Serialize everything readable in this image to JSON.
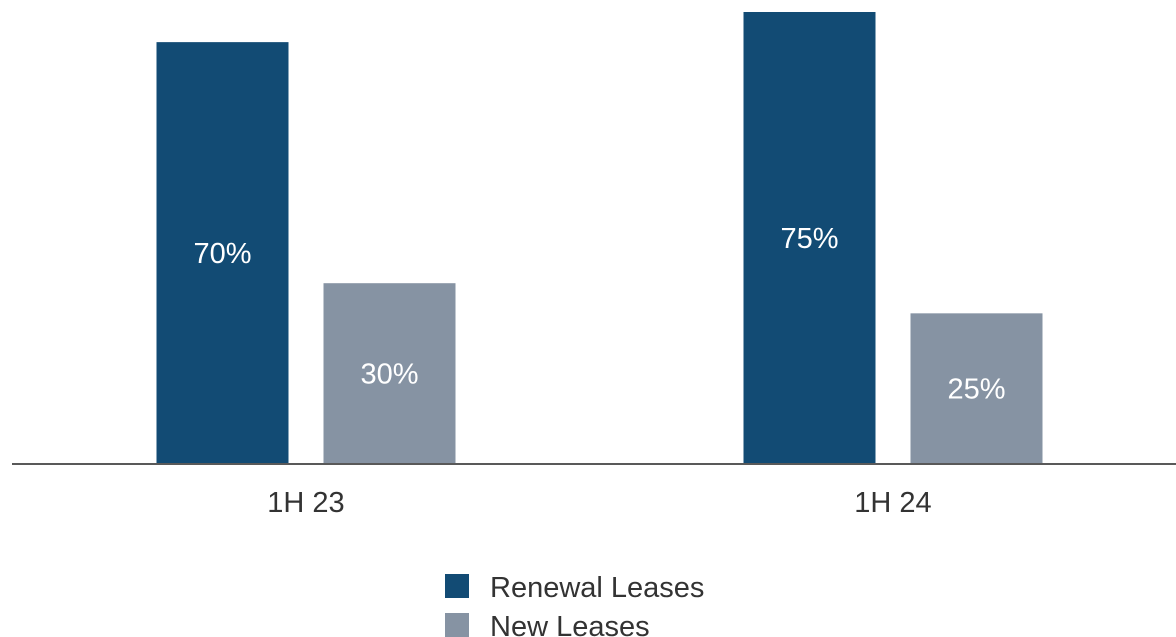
{
  "chart_data": {
    "type": "bar",
    "title": "",
    "xlabel": "",
    "ylabel": "",
    "categories": [
      "1H 23",
      "1H 24"
    ],
    "series": [
      {
        "name": "Renewal Leases",
        "values": [
          70,
          75
        ],
        "labels": [
          "70%",
          "75%"
        ],
        "color": "#124b74"
      },
      {
        "name": "New Leases",
        "values": [
          30,
          25
        ],
        "labels": [
          "30%",
          "25%"
        ],
        "color": "#8693a3"
      }
    ],
    "ylim": [
      0,
      75
    ],
    "grid": false,
    "legend_position": "bottom"
  },
  "colors": {
    "axis": "#595959",
    "text": "#333333",
    "bar_text": "#ffffff"
  }
}
